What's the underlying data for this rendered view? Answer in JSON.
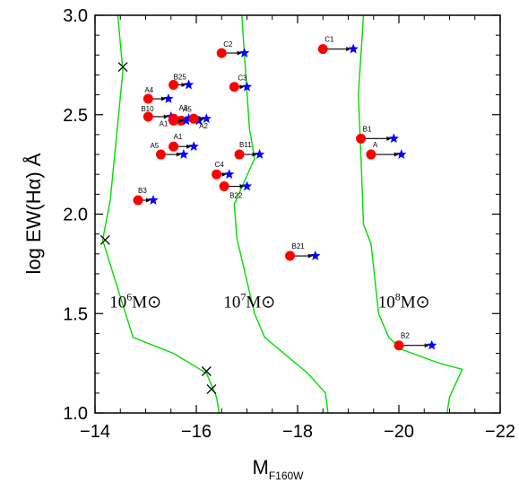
{
  "chart_data": {
    "type": "scatter",
    "title": "",
    "xlabel": "M",
    "xlabel_sub": "F160W",
    "ylabel": "log EW(Hα) Å",
    "xlim": [
      -14,
      -22
    ],
    "ylim": [
      1.0,
      3.0
    ],
    "x_ticks": [
      -14,
      -16,
      -18,
      -20,
      -22
    ],
    "x_tick_labels": [
      "−14",
      "−16",
      "−18",
      "−20",
      "−22"
    ],
    "y_ticks": [
      1.0,
      1.5,
      2.0,
      2.5,
      3.0
    ],
    "y_tick_labels": [
      "1.0",
      "1.5",
      "2.0",
      "2.5",
      "3.0"
    ],
    "grid": false,
    "colors": {
      "observed": "#ff0000",
      "corrected": "#0000ff",
      "track": "#00dd00",
      "arrow": "#000000"
    },
    "tracks": [
      {
        "name": "10^6 M⊙",
        "label_main": "10",
        "label_exp": "6",
        "label_unit": "M⊙",
        "label_pos": [
          -14.8,
          1.53
        ],
        "points": [
          [
            -14.45,
            3.0
          ],
          [
            -14.55,
            2.72
          ],
          [
            -14.3,
            2.07
          ],
          [
            -14.15,
            1.87
          ],
          [
            -14.75,
            1.38
          ],
          [
            -15.55,
            1.3
          ],
          [
            -16.2,
            1.2
          ],
          [
            -16.4,
            1.08
          ],
          [
            -16.45,
            1.0
          ]
        ]
      },
      {
        "name": "10^7 M⊙",
        "label_main": "10",
        "label_exp": "7",
        "label_unit": "M⊙",
        "label_pos": [
          -17.05,
          1.53
        ],
        "points": [
          [
            -16.9,
            3.0
          ],
          [
            -16.95,
            2.8
          ],
          [
            -17.05,
            2.43
          ],
          [
            -17.15,
            2.28
          ],
          [
            -16.75,
            2.05
          ],
          [
            -16.8,
            1.88
          ],
          [
            -17.15,
            1.5
          ],
          [
            -17.35,
            1.38
          ],
          [
            -18.2,
            1.2
          ],
          [
            -18.55,
            1.1
          ],
          [
            -18.6,
            1.0
          ]
        ]
      },
      {
        "name": "10^8 M⊙",
        "label_main": "10",
        "label_exp": "8",
        "label_unit": "M⊙",
        "label_pos": [
          -20.1,
          1.53
        ],
        "points": [
          [
            -19.3,
            3.0
          ],
          [
            -19.2,
            2.6
          ],
          [
            -19.25,
            2.3
          ],
          [
            -19.3,
            1.95
          ],
          [
            -19.45,
            1.85
          ],
          [
            -19.6,
            1.5
          ],
          [
            -19.8,
            1.38
          ],
          [
            -20.05,
            1.32
          ],
          [
            -20.8,
            1.25
          ],
          [
            -21.25,
            1.22
          ],
          [
            -21.0,
            1.08
          ],
          [
            -20.95,
            1.0
          ]
        ]
      }
    ],
    "crosses": [
      {
        "x": -14.55,
        "y": 2.74
      },
      {
        "x": -14.2,
        "y": 1.87
      },
      {
        "x": -16.2,
        "y": 1.21
      },
      {
        "x": -16.3,
        "y": 1.12
      }
    ],
    "series": [
      {
        "label": "B25",
        "x": -15.55,
        "y": 2.65,
        "x_corr": -15.85,
        "label_dx": 0,
        "label_dy": -6
      },
      {
        "label": "A4",
        "x": -15.05,
        "y": 2.58,
        "x_corr": -15.45,
        "label_dx": -4,
        "label_dy": -7
      },
      {
        "label": "B10",
        "x": -15.05,
        "y": 2.49,
        "x_corr": -15.5,
        "label_dx": -8,
        "label_dy": -6
      },
      {
        "label": "A3",
        "x": -15.55,
        "y": 2.48,
        "x_corr": -15.85,
        "label_dx": 6,
        "label_dy": -9
      },
      {
        "label": "A5",
        "x": -15.7,
        "y": 2.47,
        "x_corr": -16.05,
        "label_dx": 2,
        "label_dy": -10
      },
      {
        "label": "A1",
        "x": -15.55,
        "y": 2.47,
        "x_corr": -15.8,
        "label_dx": -16,
        "label_dy": 6
      },
      {
        "label": "A2",
        "x": -15.95,
        "y": 2.48,
        "x_corr": -16.2,
        "label_dx": 6,
        "label_dy": 11
      },
      {
        "label": "A1",
        "x": -15.55,
        "y": 2.34,
        "x_corr": -15.95,
        "label_dx": 0,
        "label_dy": -8
      },
      {
        "label": "A5",
        "x": -15.3,
        "y": 2.3,
        "x_corr": -15.75,
        "label_dx": -12,
        "label_dy": -7
      },
      {
        "label": "B3",
        "x": -14.85,
        "y": 2.07,
        "x_corr": -15.15,
        "label_dx": 0,
        "label_dy": -8
      },
      {
        "label": "C2",
        "x": -16.5,
        "y": 2.81,
        "x_corr": -16.95,
        "label_dx": 2,
        "label_dy": -7
      },
      {
        "label": "C3",
        "x": -16.75,
        "y": 2.64,
        "x_corr": -17.0,
        "label_dx": 4,
        "label_dy": -7
      },
      {
        "label": "B11",
        "x": -16.85,
        "y": 2.3,
        "x_corr": -17.25,
        "label_dx": 0,
        "label_dy": -8
      },
      {
        "label": "C4",
        "x": -16.4,
        "y": 2.2,
        "x_corr": -16.65,
        "label_dx": -2,
        "label_dy": -8
      },
      {
        "label": "B22",
        "x": -16.55,
        "y": 2.14,
        "x_corr": -17.0,
        "label_dx": 6,
        "label_dy": 13
      },
      {
        "label": "B21",
        "x": -17.85,
        "y": 1.79,
        "x_corr": -18.35,
        "label_dx": 2,
        "label_dy": -8
      },
      {
        "label": "C1",
        "x": -18.5,
        "y": 2.83,
        "x_corr": -19.1,
        "label_dx": 2,
        "label_dy": -8
      },
      {
        "label": "B1",
        "x": -19.25,
        "y": 2.38,
        "x_corr": -19.9,
        "label_dx": 2,
        "label_dy": -8
      },
      {
        "label": "A",
        "x": -19.45,
        "y": 2.3,
        "x_corr": -20.05,
        "label_dx": 2,
        "label_dy": -8
      },
      {
        "label": "B2",
        "x": -20.0,
        "y": 1.34,
        "x_corr": -20.65,
        "label_dx": 2,
        "label_dy": -8
      }
    ]
  }
}
